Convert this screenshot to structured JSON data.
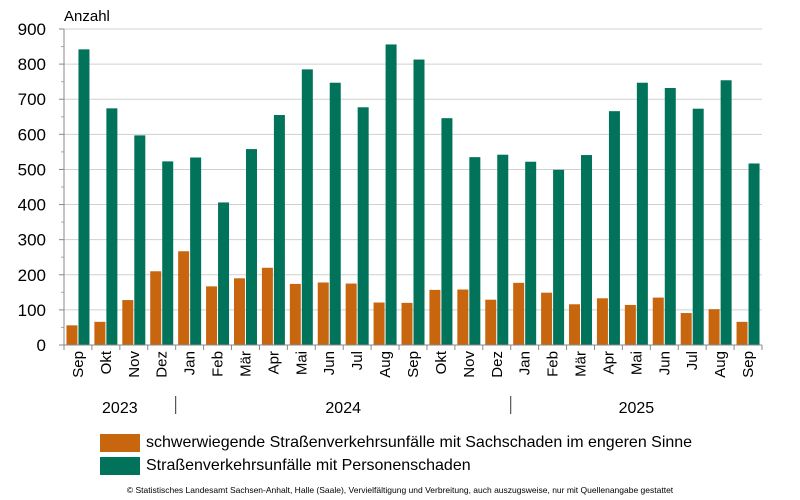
{
  "chart_data": {
    "type": "bar",
    "ylabel": "Anzahl",
    "ylim": [
      0,
      900
    ],
    "yticks": [
      0,
      100,
      200,
      300,
      400,
      500,
      600,
      700,
      800,
      900
    ],
    "grid": true,
    "categories": [
      "Sep",
      "Okt",
      "Nov",
      "Dez",
      "Jan",
      "Feb",
      "Mär",
      "Apr",
      "Mai",
      "Jun",
      "Jul",
      "Aug",
      "Sep",
      "Okt",
      "Nov",
      "Dez",
      "Jan",
      "Feb",
      "Mär",
      "Apr",
      "Mai",
      "Jun",
      "Jul",
      "Aug",
      "Sep"
    ],
    "years": [
      {
        "label": "2023",
        "from": 0,
        "to": 3
      },
      {
        "label": "2024",
        "from": 4,
        "to": 15
      },
      {
        "label": "2025",
        "from": 16,
        "to": 24
      }
    ],
    "series": [
      {
        "name": "schwerwiegende Straßenverkehrsunfälle mit Sachschaden im engeren Sinne",
        "color": "#c8660f",
        "values": [
          56,
          66,
          128,
          210,
          267,
          167,
          190,
          220,
          174,
          178,
          175,
          121,
          120,
          157,
          158,
          129,
          177,
          149,
          116,
          133,
          114,
          135,
          91,
          102,
          66
        ]
      },
      {
        "name": "Straßenverkehrsunfälle mit Personenschaden",
        "color": "#00735a",
        "values": [
          842,
          674,
          597,
          523,
          534,
          406,
          558,
          655,
          785,
          747,
          677,
          856,
          813,
          646,
          535,
          542,
          522,
          499,
          541,
          666,
          747,
          732,
          673,
          754,
          517
        ]
      }
    ],
    "legend_position": "bottom"
  },
  "footer": "© Statistisches Landesamt Sachsen-Anhalt, Halle (Saale), Vervielfältigung und Verbreitung, auch auszugsweise, nur mit Quellenangabe gestattet"
}
